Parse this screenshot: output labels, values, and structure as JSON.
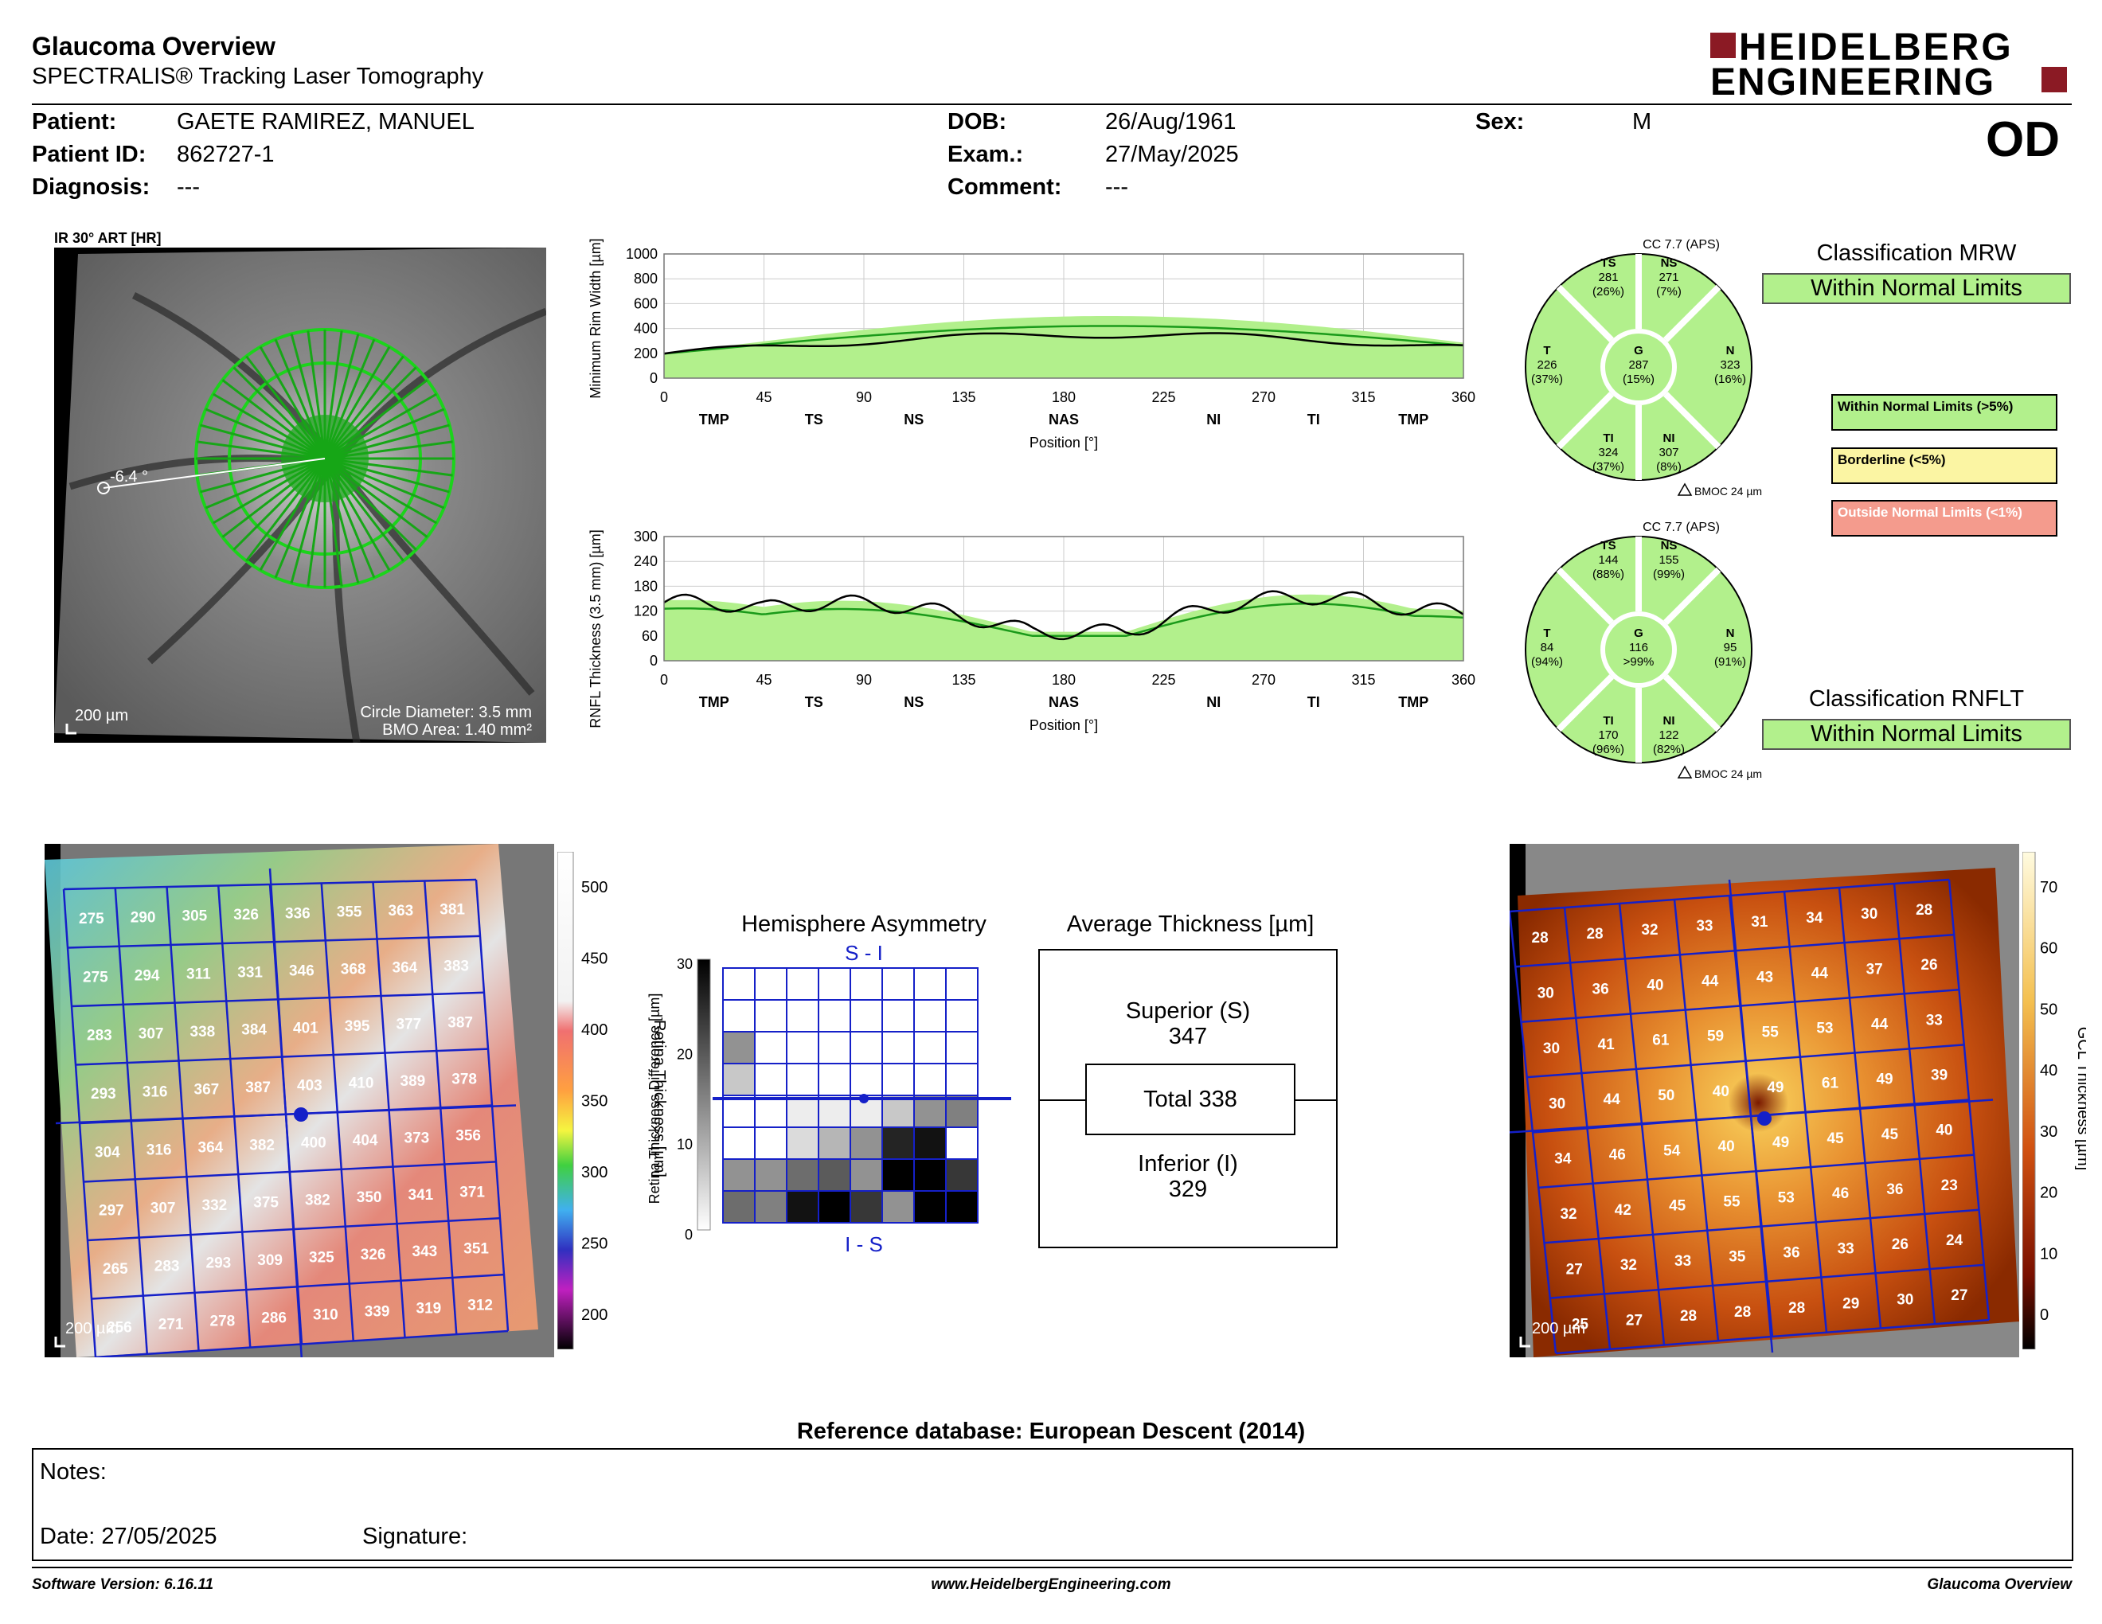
{
  "header": {
    "title": "Glaucoma Overview",
    "subtitle": "SPECTRALIS® Tracking Laser Tomography",
    "brand_line1": "HEIDELBERG",
    "brand_line2": "ENGINEERING",
    "eye": "OD"
  },
  "patient": {
    "patient_label": "Patient:",
    "patient_value": "GAETE RAMIREZ, MANUEL",
    "id_label": "Patient ID:",
    "id_value": "862727-1",
    "diagnosis_label": "Diagnosis:",
    "diagnosis_value": "---",
    "dob_label": "DOB:",
    "dob_value": "26/Aug/1961",
    "exam_label": "Exam.:",
    "exam_value": "27/May/2025",
    "comment_label": "Comment:",
    "comment_value": "---",
    "sex_label": "Sex:",
    "sex_value": "M"
  },
  "fundus": {
    "title": "IR 30° ART [HR]",
    "angle": "-6.4 °",
    "scale": "200 µm",
    "circle_diameter": "Circle Diameter: 3.5 mm",
    "bmo_area": "BMO Area: 1.40 mm²"
  },
  "mrw_chart": {
    "ylabel": "Minimum Rim Width [µm]",
    "xlabel": "Position [°]",
    "yticks": [
      "0",
      "200",
      "400",
      "600",
      "800",
      "1000"
    ],
    "xticks": [
      "0",
      "45",
      "90",
      "135",
      "180",
      "225",
      "270",
      "315",
      "360"
    ],
    "sectors": [
      "TMP",
      "TS",
      "NS",
      "NAS",
      "NI",
      "TI",
      "TMP"
    ]
  },
  "rnfl_chart": {
    "ylabel": "RNFL Thickness (3.5 mm) [µm]",
    "xlabel": "Position [°]",
    "yticks": [
      "0",
      "60",
      "120",
      "180",
      "240",
      "300"
    ],
    "xticks": [
      "0",
      "45",
      "90",
      "135",
      "180",
      "225",
      "270",
      "315",
      "360"
    ],
    "sectors": [
      "TMP",
      "TS",
      "NS",
      "NAS",
      "NI",
      "TI",
      "TMP"
    ]
  },
  "mrw_pie": {
    "cc": "CC 7.7 (APS)",
    "bmoc": "BMOC 24 µm",
    "TS": {
      "label": "TS",
      "value": "281",
      "pct": "(26%)"
    },
    "NS": {
      "label": "NS",
      "value": "271",
      "pct": "(7%)"
    },
    "T": {
      "label": "T",
      "value": "226",
      "pct": "(37%)"
    },
    "G": {
      "label": "G",
      "value": "287",
      "pct": "(15%)"
    },
    "N": {
      "label": "N",
      "value": "323",
      "pct": "(16%)"
    },
    "TI": {
      "label": "TI",
      "value": "324",
      "pct": "(37%)"
    },
    "NI": {
      "label": "NI",
      "value": "307",
      "pct": "(8%)"
    }
  },
  "rnfl_pie": {
    "cc": "CC 7.7 (APS)",
    "bmoc": "BMOC 24 µm",
    "TS": {
      "label": "TS",
      "value": "144",
      "pct": "(88%)"
    },
    "NS": {
      "label": "NS",
      "value": "155",
      "pct": "(99%)"
    },
    "T": {
      "label": "T",
      "value": "84",
      "pct": "(94%)"
    },
    "G": {
      "label": "G",
      "value": "116",
      "pct": ">99%"
    },
    "N": {
      "label": "N",
      "value": "95",
      "pct": "(91%)"
    },
    "TI": {
      "label": "TI",
      "value": "170",
      "pct": "(96%)"
    },
    "NI": {
      "label": "NI",
      "value": "122",
      "pct": "(82%)"
    }
  },
  "classification": {
    "mrw_title": "Classification MRW",
    "mrw_value": "Within Normal Limits",
    "rnflt_title": "Classification RNFLT",
    "rnflt_value": "Within Normal Limits",
    "legend_green": "Within Normal Limits (>5%)",
    "legend_yellow": "Borderline (<5%)",
    "legend_red": "Outside Normal Limits (<1%)",
    "colors": {
      "green": "#b2f08c",
      "yellow": "#fbf5a3",
      "red": "#f49b8d"
    }
  },
  "retina_map": {
    "scale": "200 µm",
    "colorbar_label": "Retina Thickness [µm]",
    "colorbar_ticks": [
      "500",
      "450",
      "400",
      "350",
      "300",
      "250",
      "200"
    ],
    "grid": [
      [
        "275",
        "290",
        "305",
        "326",
        "336",
        "355",
        "363",
        "381"
      ],
      [
        "275",
        "294",
        "311",
        "331",
        "346",
        "368",
        "364",
        "383"
      ],
      [
        "283",
        "307",
        "338",
        "384",
        "401",
        "395",
        "377",
        "387"
      ],
      [
        "293",
        "316",
        "367",
        "387",
        "403",
        "410",
        "389",
        "378"
      ],
      [
        "304",
        "316",
        "364",
        "382",
        "400",
        "404",
        "373",
        "356"
      ],
      [
        "297",
        "307",
        "332",
        "375",
        "382",
        "350",
        "341",
        "371"
      ],
      [
        "265",
        "283",
        "293",
        "309",
        "325",
        "326",
        "343",
        "351"
      ],
      [
        "256",
        "271",
        "278",
        "286",
        "310",
        "339",
        "319",
        "312"
      ]
    ]
  },
  "gcl_map": {
    "scale": "200 µm",
    "colorbar_label": "GCL Thickness [µm]",
    "colorbar_ticks": [
      "70",
      "60",
      "50",
      "40",
      "30",
      "20",
      "10",
      "0"
    ],
    "grid": [
      [
        "28",
        "28",
        "32",
        "33",
        "31",
        "34",
        "30",
        "28"
      ],
      [
        "30",
        "36",
        "40",
        "44",
        "43",
        "44",
        "37",
        "26"
      ],
      [
        "30",
        "41",
        "61",
        "59",
        "55",
        "53",
        "44",
        "33"
      ],
      [
        "30",
        "44",
        "50",
        "40",
        "49",
        "61",
        "49",
        "39"
      ],
      [
        "34",
        "46",
        "54",
        "40",
        "49",
        "45",
        "45",
        "40"
      ],
      [
        "32",
        "42",
        "45",
        "55",
        "53",
        "46",
        "36",
        "23"
      ],
      [
        "27",
        "32",
        "33",
        "35",
        "36",
        "33",
        "26",
        "24"
      ],
      [
        "25",
        "27",
        "28",
        "28",
        "28",
        "29",
        "30",
        "27"
      ]
    ]
  },
  "asymmetry": {
    "title": "Hemisphere Asymmetry",
    "top_label": "S - I",
    "bottom_label": "I - S",
    "ylabel": "Retina Thickness Difference [µm]",
    "colorbar_ticks": [
      "30",
      "20",
      "10",
      "0"
    ],
    "cells": [
      [
        0,
        0,
        0,
        0,
        0,
        0,
        0,
        0
      ],
      [
        0,
        0,
        0,
        0,
        0,
        0,
        0,
        0
      ],
      [
        6,
        0,
        0,
        0,
        0,
        0,
        0,
        0
      ],
      [
        3,
        0,
        0,
        0,
        0,
        0,
        0,
        0
      ],
      [
        0,
        0,
        1,
        1,
        1,
        3,
        6,
        7
      ],
      [
        0,
        0,
        2,
        4,
        6,
        12,
        13,
        0
      ],
      [
        6,
        6,
        8,
        9,
        6,
        14,
        14,
        11
      ],
      [
        8,
        7,
        13,
        14,
        11,
        6,
        14,
        14
      ]
    ]
  },
  "average": {
    "title": "Average Thickness [µm]",
    "superior_label": "Superior (S)",
    "superior_value": "347",
    "total": "Total 338",
    "inferior_label": "Inferior (I)",
    "inferior_value": "329"
  },
  "footer": {
    "reference": "Reference database: European Descent (2014)",
    "notes": "Notes:",
    "date": "Date: 27/05/2025",
    "signature": "Signature:",
    "software": "Software Version: 6.16.11",
    "website": "www.HeidelbergEngineering.com",
    "report": "Glaucoma Overview"
  }
}
